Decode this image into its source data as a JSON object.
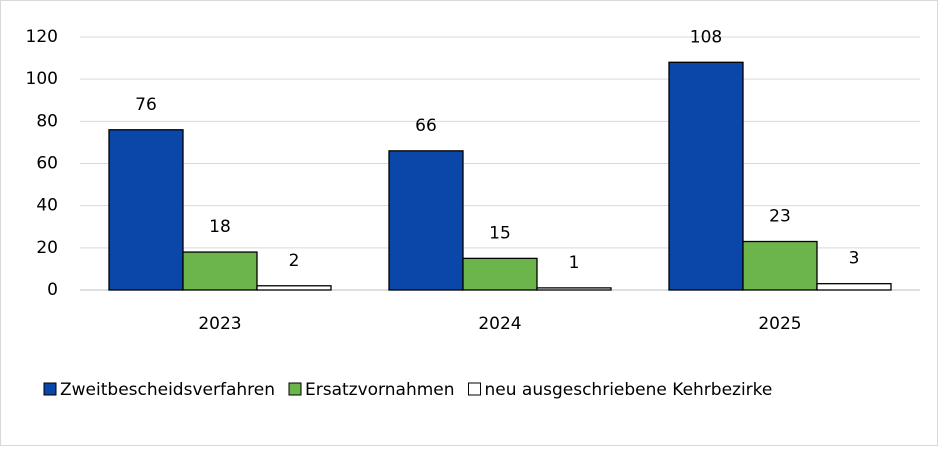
{
  "chart_data": {
    "type": "bar",
    "categories": [
      "2023",
      "2024",
      "2025"
    ],
    "series": [
      {
        "name": "Zweitbescheidsverfahren",
        "color": "#0a47a9",
        "label_color": "#000000",
        "values": [
          76,
          66,
          108
        ]
      },
      {
        "name": "Ersatzvornahmen",
        "color": "#6cb54a",
        "label_color": "#595959",
        "values": [
          18,
          15,
          23
        ]
      },
      {
        "name": "neu ausgeschriebene Kehrbezirke",
        "color": "#ffffff",
        "label_color": "#595959",
        "values": [
          2,
          1,
          3
        ]
      }
    ],
    "ylim": [
      0,
      120
    ],
    "yticks": [
      0,
      20,
      40,
      60,
      80,
      100,
      120
    ],
    "grid": true,
    "legend": "bottom"
  }
}
